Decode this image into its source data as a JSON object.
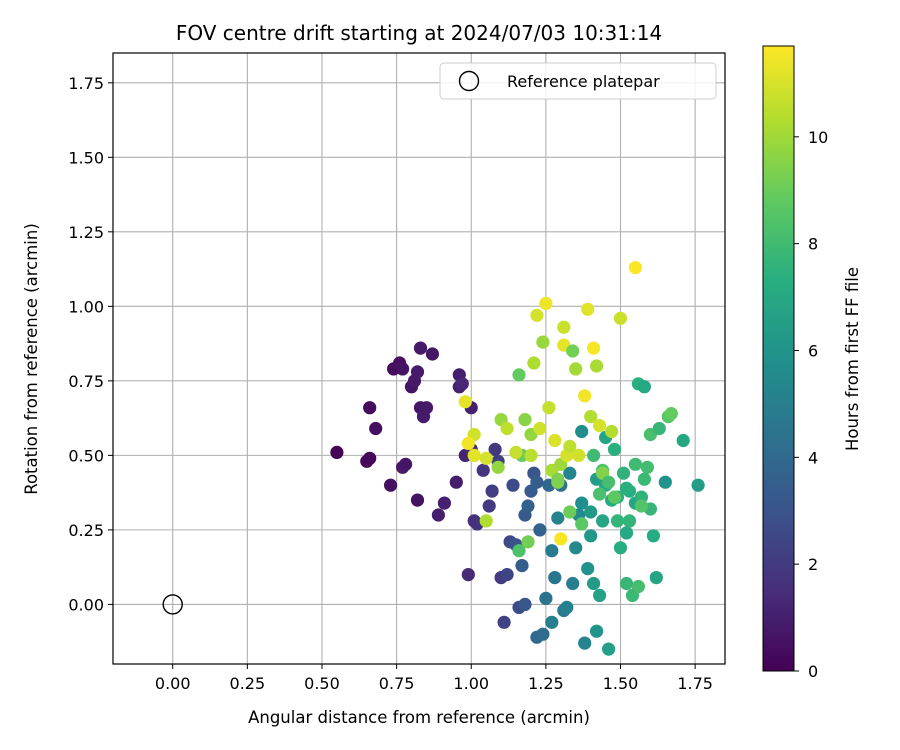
{
  "chart_data": {
    "type": "scatter",
    "title": "FOV centre drift starting at 2024/07/03 10:31:14",
    "xlabel": "Angular distance from reference (arcmin)",
    "ylabel": "Rotation from reference (arcmin)",
    "xlim": [
      -0.2,
      1.85
    ],
    "ylim": [
      -0.2,
      1.85
    ],
    "xticks": [
      0.0,
      0.25,
      0.5,
      0.75,
      1.0,
      1.25,
      1.5,
      1.75
    ],
    "yticks": [
      0.0,
      0.25,
      0.5,
      0.75,
      1.0,
      1.25,
      1.5,
      1.75
    ],
    "xtick_labels": [
      "0.00",
      "0.25",
      "0.50",
      "0.75",
      "1.00",
      "1.25",
      "1.50",
      "1.75"
    ],
    "ytick_labels": [
      "0.00",
      "0.25",
      "0.50",
      "0.75",
      "1.00",
      "1.25",
      "1.50",
      "1.75"
    ],
    "grid": true,
    "colormap": "viridis",
    "colorbar": {
      "label": "Hours from first FF file",
      "range": [
        0,
        11.7
      ],
      "ticks": [
        0,
        2,
        4,
        6,
        8,
        10
      ],
      "tick_labels": [
        "0",
        "2",
        "4",
        "6",
        "8",
        "10"
      ]
    },
    "legend": {
      "placement": "top-right",
      "entries": [
        {
          "label": "Reference platepar",
          "marker": "open-circle"
        }
      ]
    },
    "reference_point": {
      "x": 0.0,
      "y": 0.0
    },
    "points": [
      [
        0.55,
        0.51,
        0.1
      ],
      [
        0.65,
        0.48,
        0.3
      ],
      [
        0.66,
        0.49,
        0.2
      ],
      [
        0.66,
        0.66,
        0.3
      ],
      [
        0.68,
        0.59,
        0.4
      ],
      [
        0.73,
        0.4,
        0.5
      ],
      [
        0.74,
        0.79,
        0.4
      ],
      [
        0.76,
        0.81,
        0.5
      ],
      [
        0.77,
        0.79,
        0.6
      ],
      [
        0.77,
        0.46,
        0.8
      ],
      [
        0.78,
        0.47,
        0.7
      ],
      [
        0.8,
        0.73,
        0.7
      ],
      [
        0.81,
        0.75,
        0.8
      ],
      [
        0.82,
        0.78,
        0.9
      ],
      [
        0.82,
        0.35,
        0.6
      ],
      [
        0.83,
        0.66,
        0.7
      ],
      [
        0.83,
        0.86,
        0.8
      ],
      [
        0.84,
        0.63,
        0.9
      ],
      [
        0.85,
        0.66,
        0.8
      ],
      [
        0.87,
        0.84,
        0.7
      ],
      [
        0.89,
        0.3,
        1.0
      ],
      [
        0.91,
        0.34,
        1.1
      ],
      [
        0.95,
        0.41,
        1.0
      ],
      [
        0.96,
        0.77,
        1.0
      ],
      [
        0.96,
        0.73,
        1.1
      ],
      [
        0.97,
        0.74,
        1.3
      ],
      [
        0.98,
        0.5,
        1.2
      ],
      [
        0.99,
        0.1,
        1.4
      ],
      [
        1.0,
        0.66,
        1.1
      ],
      [
        1.0,
        0.52,
        1.4
      ],
      [
        1.01,
        0.28,
        1.6
      ],
      [
        1.02,
        0.27,
        1.7
      ],
      [
        1.04,
        0.45,
        1.8
      ],
      [
        1.06,
        0.33,
        2.0
      ],
      [
        1.07,
        0.38,
        2.1
      ],
      [
        1.08,
        0.52,
        1.9
      ],
      [
        1.09,
        0.48,
        2.2
      ],
      [
        1.1,
        0.09,
        2.0
      ],
      [
        1.11,
        -0.06,
        2.3
      ],
      [
        1.12,
        0.1,
        2.4
      ],
      [
        1.13,
        0.21,
        2.6
      ],
      [
        1.14,
        0.4,
        2.7
      ],
      [
        1.15,
        0.2,
        3.0
      ],
      [
        1.16,
        -0.01,
        2.7
      ],
      [
        1.17,
        0.13,
        3.5
      ],
      [
        1.18,
        0.0,
        3.2
      ],
      [
        1.18,
        0.3,
        3.3
      ],
      [
        1.19,
        0.33,
        3.6
      ],
      [
        1.2,
        0.38,
        3.4
      ],
      [
        1.21,
        0.44,
        3.1
      ],
      [
        1.22,
        -0.11,
        4.0
      ],
      [
        1.22,
        0.41,
        3.5
      ],
      [
        1.23,
        0.25,
        3.8
      ],
      [
        1.24,
        -0.1,
        4.2
      ],
      [
        1.25,
        0.02,
        4.5
      ],
      [
        1.26,
        0.4,
        3.9
      ],
      [
        1.27,
        0.18,
        4.8
      ],
      [
        1.27,
        -0.06,
        5.0
      ],
      [
        1.28,
        0.09,
        4.6
      ],
      [
        1.29,
        0.29,
        5.2
      ],
      [
        1.3,
        0.4,
        4.4
      ],
      [
        1.31,
        -0.02,
        4.9
      ],
      [
        1.32,
        -0.01,
        5.1
      ],
      [
        1.33,
        0.44,
        5.3
      ],
      [
        1.34,
        0.07,
        5.0
      ],
      [
        1.35,
        0.19,
        5.5
      ],
      [
        1.36,
        0.3,
        5.6
      ],
      [
        1.37,
        0.34,
        5.8
      ],
      [
        1.37,
        0.58,
        5.7
      ],
      [
        1.38,
        -0.13,
        5.3
      ],
      [
        1.39,
        0.12,
        6.0
      ],
      [
        1.4,
        0.23,
        6.2
      ],
      [
        1.4,
        0.31,
        6.3
      ],
      [
        1.41,
        0.07,
        6.4
      ],
      [
        1.42,
        -0.09,
        6.1
      ],
      [
        1.42,
        0.42,
        6.5
      ],
      [
        1.43,
        0.03,
        6.7
      ],
      [
        1.44,
        0.28,
        6.9
      ],
      [
        1.45,
        0.4,
        7.0
      ],
      [
        1.45,
        0.56,
        6.8
      ],
      [
        1.46,
        -0.15,
        6.6
      ],
      [
        1.47,
        0.35,
        7.2
      ],
      [
        1.48,
        0.52,
        7.4
      ],
      [
        1.49,
        0.36,
        7.5
      ],
      [
        1.5,
        0.19,
        7.3
      ],
      [
        1.51,
        0.44,
        7.6
      ],
      [
        1.52,
        0.07,
        7.8
      ],
      [
        1.52,
        0.24,
        7.1
      ],
      [
        1.53,
        0.28,
        7.7
      ],
      [
        1.54,
        0.03,
        7.9
      ],
      [
        1.55,
        0.47,
        8.0
      ],
      [
        1.55,
        0.34,
        6.9
      ],
      [
        1.56,
        0.06,
        8.2
      ],
      [
        1.56,
        0.74,
        7.4
      ],
      [
        1.57,
        0.36,
        7.6
      ],
      [
        1.58,
        0.73,
        7.0
      ],
      [
        1.59,
        0.46,
        8.1
      ],
      [
        1.6,
        0.57,
        8.3
      ],
      [
        1.61,
        0.23,
        7.2
      ],
      [
        1.62,
        0.09,
        6.8
      ],
      [
        1.63,
        0.59,
        7.8
      ],
      [
        1.65,
        0.41,
        6.0
      ],
      [
        1.66,
        0.63,
        8.6
      ],
      [
        1.67,
        0.64,
        8.9
      ],
      [
        1.71,
        0.55,
        7.0
      ],
      [
        1.76,
        0.4,
        6.5
      ],
      [
        1.53,
        0.38,
        7.3
      ],
      [
        1.49,
        0.28,
        7.7
      ],
      [
        1.44,
        0.45,
        8.4
      ],
      [
        1.41,
        0.5,
        8.0
      ],
      [
        1.16,
        0.77,
        8.9
      ],
      [
        1.16,
        0.18,
        8.4
      ],
      [
        1.17,
        0.5,
        9.0
      ],
      [
        1.18,
        0.62,
        9.6
      ],
      [
        1.19,
        0.21,
        9.2
      ],
      [
        1.2,
        0.57,
        9.8
      ],
      [
        1.2,
        0.5,
        10.5
      ],
      [
        1.21,
        0.81,
        10.3
      ],
      [
        1.22,
        0.97,
        11.0
      ],
      [
        1.23,
        0.59,
        10.9
      ],
      [
        1.24,
        0.88,
        9.9
      ],
      [
        1.25,
        1.01,
        11.4
      ],
      [
        1.26,
        0.66,
        10.7
      ],
      [
        1.27,
        0.45,
        10.2
      ],
      [
        1.28,
        0.55,
        11.1
      ],
      [
        1.29,
        0.41,
        9.5
      ],
      [
        1.3,
        0.47,
        10.0
      ],
      [
        1.31,
        0.93,
        10.8
      ],
      [
        1.31,
        0.87,
        11.3
      ],
      [
        1.32,
        0.5,
        11.0
      ],
      [
        1.33,
        0.53,
        10.6
      ],
      [
        1.34,
        0.85,
        9.2
      ],
      [
        1.35,
        0.79,
        10.1
      ],
      [
        1.36,
        0.5,
        10.9
      ],
      [
        1.38,
        0.7,
        11.5
      ],
      [
        1.39,
        0.99,
        11.2
      ],
      [
        1.4,
        0.63,
        10.4
      ],
      [
        1.41,
        0.86,
        11.6
      ],
      [
        1.42,
        0.8,
        10.2
      ],
      [
        1.43,
        0.6,
        11.0
      ],
      [
        1.44,
        0.44,
        9.5
      ],
      [
        1.47,
        0.58,
        10.4
      ],
      [
        1.5,
        0.96,
        10.8
      ],
      [
        1.55,
        1.13,
        11.7
      ],
      [
        1.01,
        0.5,
        11.2
      ],
      [
        1.01,
        0.57,
        10.9
      ],
      [
        1.05,
        0.49,
        11.0
      ],
      [
        1.05,
        0.28,
        10.3
      ],
      [
        1.09,
        0.46,
        9.8
      ],
      [
        1.1,
        0.62,
        9.9
      ],
      [
        1.12,
        0.59,
        10.6
      ],
      [
        1.15,
        0.51,
        10.7
      ],
      [
        0.99,
        0.54,
        11.5
      ],
      [
        0.98,
        0.68,
        11.3
      ],
      [
        1.3,
        0.22,
        11.6
      ],
      [
        1.29,
        0.42,
        9.4
      ],
      [
        1.37,
        0.27,
        8.7
      ],
      [
        1.33,
        0.31,
        9.1
      ],
      [
        1.48,
        0.36,
        8.8
      ],
      [
        1.58,
        0.42,
        7.9
      ],
      [
        1.52,
        0.39,
        7.4
      ],
      [
        1.6,
        0.32,
        7.8
      ],
      [
        1.57,
        0.33,
        8.5
      ],
      [
        1.46,
        0.41,
        8.2
      ],
      [
        1.43,
        0.37,
        8.3
      ]
    ]
  }
}
